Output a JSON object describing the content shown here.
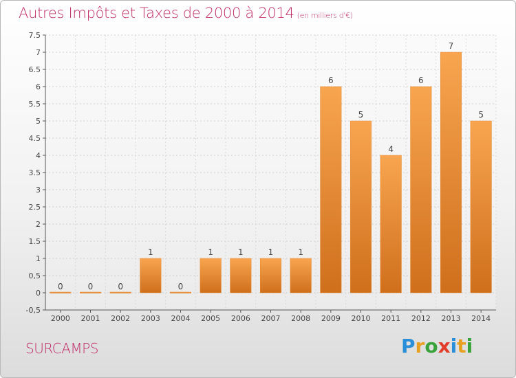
{
  "header": {
    "title": "Autres Impôts et Taxes de 2000 à 2014",
    "unit": "(en milliers d'€)"
  },
  "footer": {
    "commune": "SURCAMPS",
    "logo_letters": [
      {
        "ch": "P",
        "color": "#2a8fd8"
      },
      {
        "ch": "r",
        "color": "#e8a020"
      },
      {
        "ch": "o",
        "color": "#3aa23a"
      },
      {
        "ch": "x",
        "color": "#e23c2a"
      },
      {
        "ch": "i",
        "color": "#2a8fd8"
      },
      {
        "ch": "t",
        "color": "#e8a020"
      },
      {
        "ch": "i",
        "color": "#3aa23a"
      }
    ]
  },
  "chart_data": {
    "type": "bar",
    "categories": [
      "2000",
      "2001",
      "2002",
      "2003",
      "2004",
      "2005",
      "2006",
      "2007",
      "2008",
      "2009",
      "2010",
      "2011",
      "2012",
      "2013",
      "2014"
    ],
    "values": [
      0,
      0,
      0,
      1,
      0,
      1,
      1,
      1,
      1,
      6,
      5,
      4,
      6,
      7,
      5
    ],
    "value_labels": [
      "0",
      "0",
      "0",
      "1",
      "0",
      "1",
      "1",
      "1",
      "1",
      "6",
      "5",
      "4",
      "6",
      "7",
      "5"
    ],
    "ylim": [
      -0.5,
      7.5
    ],
    "yticks": [
      -0.5,
      0,
      0.5,
      1,
      1.5,
      2,
      2.5,
      3,
      3.5,
      4,
      4.5,
      5,
      5.5,
      6,
      6.5,
      7,
      7.5
    ],
    "ytick_labels": [
      "-0,5",
      "0",
      "0,5",
      "1",
      "1.5",
      "2",
      "2.5",
      "3",
      "3.5",
      "4",
      "4.5",
      "5",
      "5.5",
      "6",
      "6.5",
      "7",
      "7.5"
    ],
    "grid": true,
    "bar_color": "#f0953a",
    "title": "Autres Impôts et Taxes de 2000 à 2014",
    "xlabel": "",
    "ylabel": ""
  }
}
